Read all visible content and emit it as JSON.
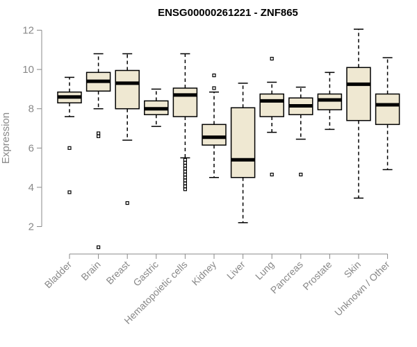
{
  "chart_data": {
    "type": "box",
    "title": "ENSG00000261221 - ZNF865",
    "ylabel": "Expression",
    "xlabel": "",
    "ylim": [
      1.2,
      12.4
    ],
    "yticks": [
      2,
      4,
      6,
      8,
      10,
      12
    ],
    "categories": [
      "Bladder",
      "Brain",
      "Breast",
      "Gastric",
      "Hematopoietic cells",
      "Kidney",
      "Liver",
      "Lung",
      "Pancreas",
      "Prostate",
      "Skin",
      "Unknown / Other"
    ],
    "boxes": [
      {
        "category": "Bladder",
        "whisker_low": 7.6,
        "q1": 8.3,
        "median": 8.6,
        "q3": 8.85,
        "whisker_high": 9.6,
        "outliers": [
          6.0,
          3.75
        ]
      },
      {
        "category": "Brain",
        "whisker_low": 8.0,
        "q1": 8.9,
        "median": 9.4,
        "q3": 9.85,
        "whisker_high": 10.8,
        "outliers": [
          6.75,
          6.6,
          0.95
        ]
      },
      {
        "category": "Breast",
        "whisker_low": 6.4,
        "q1": 8.0,
        "median": 9.3,
        "q3": 9.95,
        "whisker_high": 10.8,
        "outliers": [
          3.2
        ]
      },
      {
        "category": "Gastric",
        "whisker_low": 7.1,
        "q1": 7.7,
        "median": 8.0,
        "q3": 8.4,
        "whisker_high": 9.0,
        "outliers": []
      },
      {
        "category": "Hematopoietic cells",
        "whisker_low": 5.5,
        "q1": 7.6,
        "median": 8.7,
        "q3": 9.05,
        "whisker_high": 10.8,
        "outliers": [
          5.4,
          5.25,
          5.1,
          4.95,
          4.8,
          4.65,
          4.5,
          4.35,
          4.2,
          4.05,
          3.9
        ]
      },
      {
        "category": "Kidney",
        "whisker_low": 4.5,
        "q1": 6.15,
        "median": 6.55,
        "q3": 7.2,
        "whisker_high": 8.85,
        "outliers": [
          9.7,
          9.05
        ]
      },
      {
        "category": "Liver",
        "whisker_low": 2.2,
        "q1": 4.5,
        "median": 5.4,
        "q3": 8.05,
        "whisker_high": 9.3,
        "outliers": []
      },
      {
        "category": "Lung",
        "whisker_low": 6.8,
        "q1": 7.6,
        "median": 8.4,
        "q3": 8.75,
        "whisker_high": 9.35,
        "outliers": [
          10.55,
          4.65
        ]
      },
      {
        "category": "Pancreas",
        "whisker_low": 6.45,
        "q1": 7.7,
        "median": 8.15,
        "q3": 8.55,
        "whisker_high": 9.1,
        "outliers": [
          4.65
        ]
      },
      {
        "category": "Prostate",
        "whisker_low": 6.95,
        "q1": 7.95,
        "median": 8.45,
        "q3": 8.75,
        "whisker_high": 9.85,
        "outliers": []
      },
      {
        "category": "Skin",
        "whisker_low": 3.45,
        "q1": 7.4,
        "median": 9.25,
        "q3": 10.1,
        "whisker_high": 12.05,
        "outliers": []
      },
      {
        "category": "Unknown / Other",
        "whisker_low": 4.9,
        "q1": 7.2,
        "median": 8.2,
        "q3": 8.75,
        "whisker_high": 10.6,
        "outliers": []
      }
    ],
    "colors": {
      "box_fill": "#efe8d2",
      "box_stroke": "#000000",
      "axis": "#888888"
    },
    "grid": false,
    "legend": "none"
  }
}
